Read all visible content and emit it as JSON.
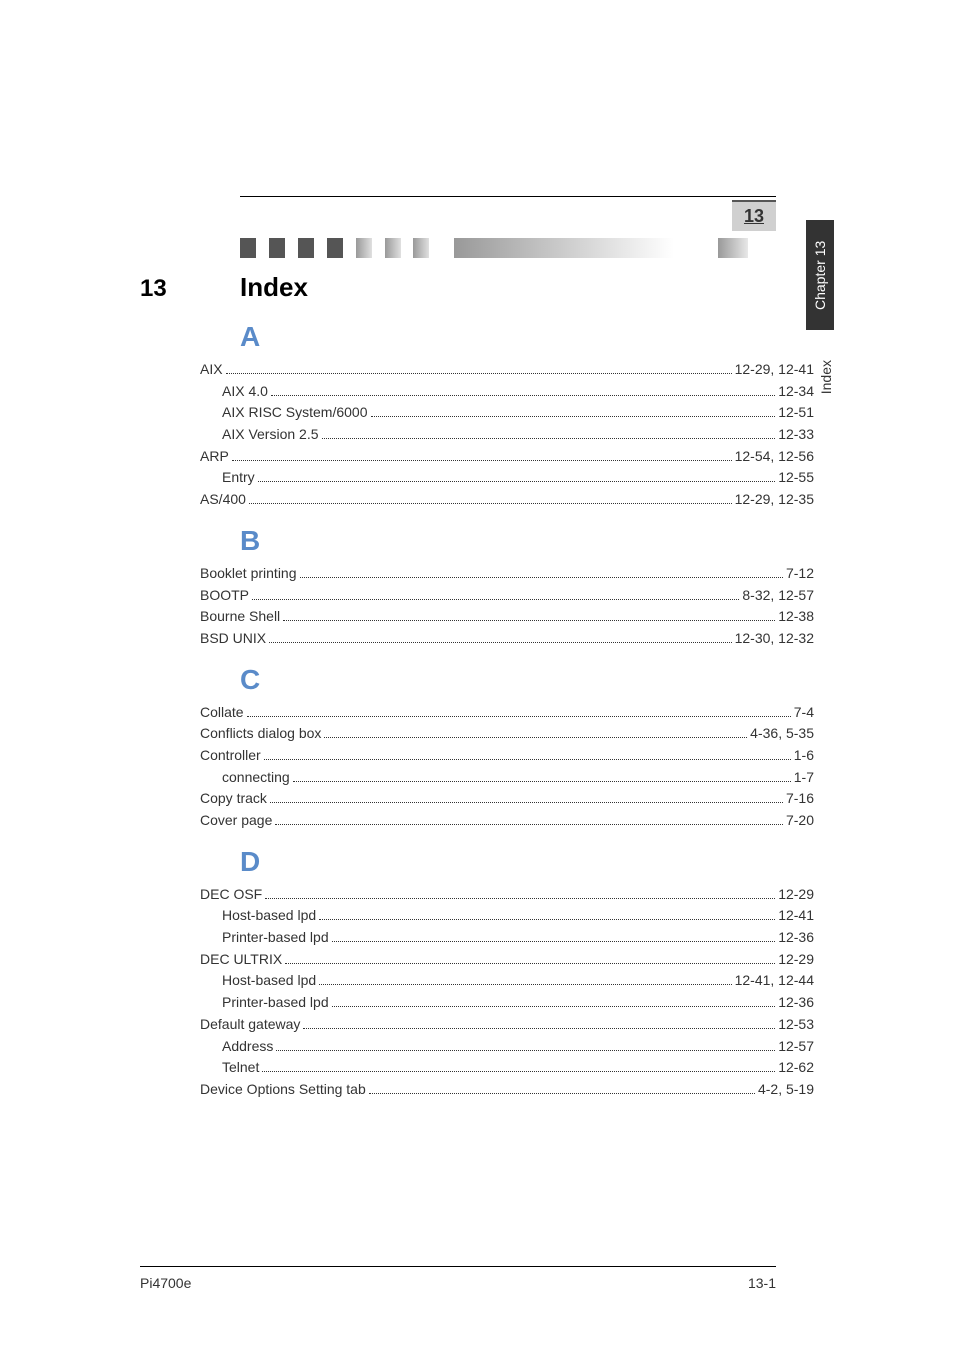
{
  "chapter_badge": "13",
  "side_tab_dark": "Chapter 13",
  "side_tab_light": "Index",
  "chapter_num": "13",
  "title": "Index",
  "sections": [
    {
      "letter": "A",
      "entries": [
        {
          "label": "AIX",
          "page": "12-29, 12-41",
          "sub": false
        },
        {
          "label": "AIX 4.0",
          "page": "12-34",
          "sub": true
        },
        {
          "label": "AIX RISC System/6000",
          "page": "12-51",
          "sub": true
        },
        {
          "label": "AIX Version 2.5",
          "page": "12-33",
          "sub": true
        },
        {
          "label": "ARP",
          "page": "12-54, 12-56",
          "sub": false
        },
        {
          "label": "Entry",
          "page": "12-55",
          "sub": true
        },
        {
          "label": "AS/400",
          "page": "12-29, 12-35",
          "sub": false
        }
      ]
    },
    {
      "letter": "B",
      "entries": [
        {
          "label": "Booklet printing",
          "page": "7-12",
          "sub": false
        },
        {
          "label": "BOOTP",
          "page": "8-32, 12-57",
          "sub": false
        },
        {
          "label": "Bourne Shell",
          "page": "12-38",
          "sub": false
        },
        {
          "label": "BSD UNIX",
          "page": "12-30, 12-32",
          "sub": false
        }
      ]
    },
    {
      "letter": "C",
      "entries": [
        {
          "label": "Collate",
          "page": "7-4",
          "sub": false
        },
        {
          "label": "Conflicts dialog box",
          "page": "4-36, 5-35",
          "sub": false
        },
        {
          "label": "Controller",
          "page": "1-6",
          "sub": false
        },
        {
          "label": "connecting",
          "page": "1-7",
          "sub": true
        },
        {
          "label": "Copy track",
          "page": "7-16",
          "sub": false
        },
        {
          "label": "Cover page",
          "page": "7-20",
          "sub": false
        }
      ]
    },
    {
      "letter": "D",
      "entries": [
        {
          "label": "DEC OSF",
          "page": "12-29",
          "sub": false
        },
        {
          "label": "Host-based lpd",
          "page": "12-41",
          "sub": true
        },
        {
          "label": "Printer-based lpd",
          "page": "12-36",
          "sub": true
        },
        {
          "label": "DEC ULTRIX",
          "page": "12-29",
          "sub": false
        },
        {
          "label": "Host-based lpd",
          "page": "12-41, 12-44",
          "sub": true
        },
        {
          "label": "Printer-based lpd",
          "page": "12-36",
          "sub": true
        },
        {
          "label": "Default gateway",
          "page": "12-53",
          "sub": false
        },
        {
          "label": "Address",
          "page": "12-57",
          "sub": true
        },
        {
          "label": "Telnet",
          "page": "12-62",
          "sub": true
        },
        {
          "label": "Device Options Setting tab",
          "page": "4-2, 5-19",
          "sub": false
        }
      ]
    }
  ],
  "footer_left": "Pi4700e",
  "footer_right": "13-1",
  "colors": {
    "letter": "#5a8bc9",
    "text": "#333333",
    "background": "#ffffff",
    "tab_dark_bg": "#333333",
    "tab_dark_text": "#ffffff",
    "badge_bg": "#d0d0d0"
  }
}
